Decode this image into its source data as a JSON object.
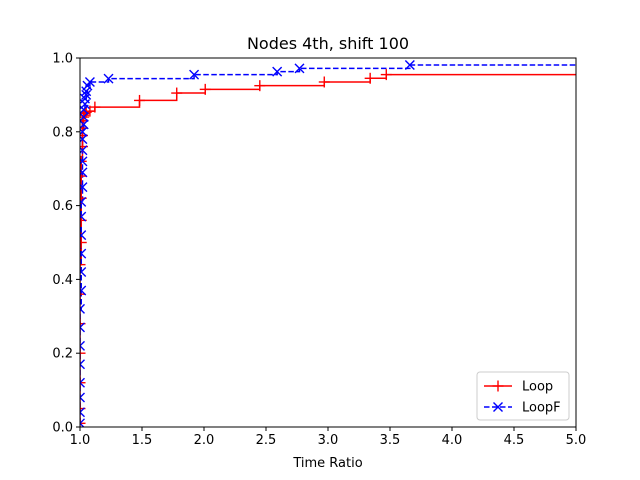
{
  "chart_data": {
    "type": "line",
    "title": "Nodes 4th, shift 100",
    "xlabel": "Time Ratio",
    "ylabel": "",
    "xlim": [
      1.0,
      5.0
    ],
    "ylim": [
      0.0,
      1.0
    ],
    "xticks": [
      "1.0",
      "1.5",
      "2.0",
      "2.5",
      "3.0",
      "3.5",
      "4.0",
      "4.5",
      "5.0"
    ],
    "yticks": [
      "0.0",
      "0.2",
      "0.4",
      "0.6",
      "0.8",
      "1.0"
    ],
    "grid": false,
    "legend_position": "lower-right",
    "step": "post",
    "series": [
      {
        "name": "Loop",
        "color": "#ff0000",
        "linestyle": "solid",
        "marker": "plus",
        "x": [
          1.0,
          1.0,
          1.0,
          1.0,
          1.0,
          1.0,
          1.0,
          1.01,
          1.01,
          1.01,
          1.01,
          1.01,
          1.02,
          1.02,
          1.02,
          1.02,
          1.03,
          1.03,
          1.04,
          1.05,
          1.08,
          1.12,
          1.48,
          1.78,
          2.01,
          2.45,
          2.97,
          3.34,
          3.47,
          5.0
        ],
        "y": [
          0.01,
          0.05,
          0.12,
          0.2,
          0.28,
          0.36,
          0.44,
          0.5,
          0.56,
          0.62,
          0.68,
          0.72,
          0.76,
          0.79,
          0.81,
          0.83,
          0.84,
          0.845,
          0.85,
          0.853,
          0.856,
          0.867,
          0.885,
          0.905,
          0.915,
          0.925,
          0.935,
          0.945,
          0.955,
          0.955
        ]
      },
      {
        "name": "LoopF",
        "color": "#0000ff",
        "linestyle": "dashed",
        "marker": "x",
        "x": [
          1.0,
          1.0,
          1.0,
          1.0,
          1.0,
          1.0,
          1.0,
          1.0,
          1.01,
          1.01,
          1.01,
          1.01,
          1.01,
          1.01,
          1.02,
          1.02,
          1.02,
          1.02,
          1.02,
          1.02,
          1.03,
          1.03,
          1.03,
          1.04,
          1.04,
          1.05,
          1.05,
          1.06,
          1.08,
          1.23,
          1.92,
          2.59,
          2.77,
          3.66,
          5.0
        ],
        "y": [
          0.01,
          0.04,
          0.08,
          0.12,
          0.17,
          0.22,
          0.27,
          0.32,
          0.37,
          0.42,
          0.47,
          0.52,
          0.57,
          0.61,
          0.65,
          0.69,
          0.72,
          0.75,
          0.78,
          0.8,
          0.82,
          0.84,
          0.86,
          0.875,
          0.89,
          0.9,
          0.91,
          0.925,
          0.935,
          0.944,
          0.955,
          0.963,
          0.972,
          0.981,
          0.981
        ]
      }
    ]
  }
}
